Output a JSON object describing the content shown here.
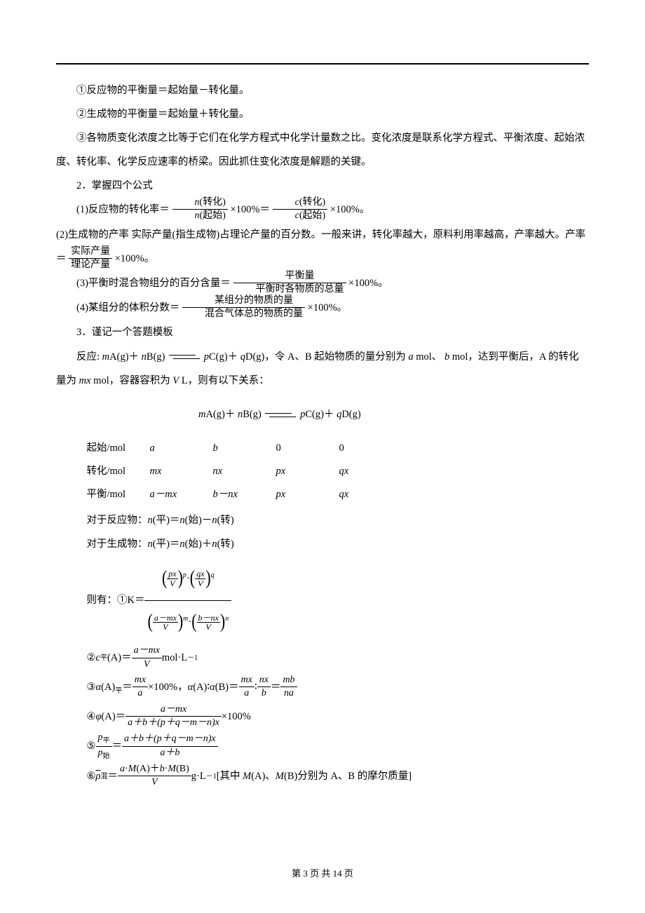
{
  "lines": {
    "l1": "①反应物的平衡量＝起始量－转化量。",
    "l2": "②生成物的平衡量＝起始量＋转化量。",
    "l3": "③各物质变化浓度之比等于它们在化学方程式中化学计量数之比。变化浓度是联系化学方程式、平衡浓度、起始浓度、转化率、化学反应速率的桥梁。因此抓住变化浓度是解题的关键。",
    "h2": "2．掌握四个公式",
    "f1_pre": "(1)反应物的转化率＝",
    "f1_num1": "n(转化)",
    "f1_den1": "n(起始)",
    "f1_mid": "×100%＝",
    "f1_num2": "c(转化)",
    "f1_den2": "c(起始)",
    "f1_end": "×100%。",
    "f2_pre": "(2)生成物的产率 实际产量(指生成物)占理论产量的百分数。一般来讲，转化率越大，原料利用率越高，产率越大。产率＝",
    "f2_num": "实际产量",
    "f2_den": "理论产量",
    "f2_end": "×100%。",
    "f3_pre": "(3)平衡时混合物组分的百分含量＝",
    "f3_num": "平衡量",
    "f3_den": "平衡时各物质的总量",
    "f3_end": "×100%。",
    "f4_pre": "(4)某组分的体积分数＝",
    "f4_num": "某组分的物质的量",
    "f4_den": "混合气体总的物质的量",
    "f4_end": "×100%。",
    "h3": "3．谨记一个答题模板",
    "r1a": "反应: ",
    "r1b": "A(g)＋",
    "r1c": "B(g) ",
    "r1d": "C(g)＋",
    "r1e": "D(g)，令 A、B 起始物质的量分别为 ",
    "r1f": " mol、",
    "r1g": " mol，达到平衡后，A 的转化量为 ",
    "r1h": " mol，容器容积为 ",
    "r1i": " L，则有以下关系：",
    "tbl_head": "A(g)＋",
    "tbl_head2": "B(g) ",
    "tbl_head3": "C(g)＋",
    "tbl_head4": "D(g)",
    "row1_l": "起始/mol",
    "row2_l": "转化/mol",
    "row3_l": "平衡/mol",
    "row1_a": "a",
    "row1_b": "b",
    "row1_c": "0",
    "row1_d": "0",
    "row2_a": "mx",
    "row2_b": "nx",
    "row2_c": "px",
    "row2_d": "qx",
    "row3_a": "a－mx",
    "row3_b": "b－nx",
    "row3_c": "px",
    "row3_d": "qx",
    "eq_r": "对于反应物：n(平)＝n(始)－n(转)",
    "eq_p": "对于生成物：n(平)＝n(始)＋n(转)",
    "then": "则有：①",
    "K": "K＝",
    "c2_pre": "②",
    "c2_body": "(A)＝",
    "c2_num": "a－mx",
    "c2_den": "V",
    "c2_unit": " mol·L",
    "a3_pre": "③α(A)",
    "a3_eq": "＝",
    "a3_num": "mx",
    "a3_den": "a",
    "a3_mid": "×100%，α(A)∶α(B)＝",
    "a3_num2": "mx",
    "a3_den2": "a",
    "a3_colon": "∶",
    "a3_num3": "nx",
    "a3_den3": "b",
    "a3_eq2": "＝",
    "a3_num4": "mb",
    "a3_den4": "na",
    "p4_pre": "④φ(A)＝",
    "p4_num": "a－mx",
    "p4_den": "a＋b＋(p＋q－m－n)x",
    "p4_end": "×100%",
    "p5_pre": "⑤",
    "p5_lnum": "p",
    "p5_lden": "p",
    "p5_eq": "＝",
    "p5_num": "a＋b＋(p＋q－m－n)x",
    "p5_den": "a＋b",
    "p6_pre": "⑥",
    "p6_rho": "ρ",
    "p6_sub": "混",
    "p6_eq": "＝",
    "p6_num": "a·M(A)＋b·M(B)",
    "p6_den": "V",
    "p6_end": " g·L",
    "p6_bracket": "[其中 M(A)、M(B)分别为 A、B 的摩尔质量]",
    "page_current": "3",
    "page_total": "14",
    "footer_a": "第 ",
    "footer_b": " 页 共 ",
    "footer_c": " 页",
    "m": "m",
    "n": "n",
    "p": "p",
    "q": "q",
    "a": "a",
    "b": "b",
    "mx": "mx",
    "V": "V",
    "px": "px",
    "qx": "qx",
    "amx": "a－mx",
    "bnx": "b－nx",
    "c_flat": "c",
    "flat_sub": "平",
    "p_flat": "平",
    "p_start": "始",
    "minus1": "－1"
  }
}
